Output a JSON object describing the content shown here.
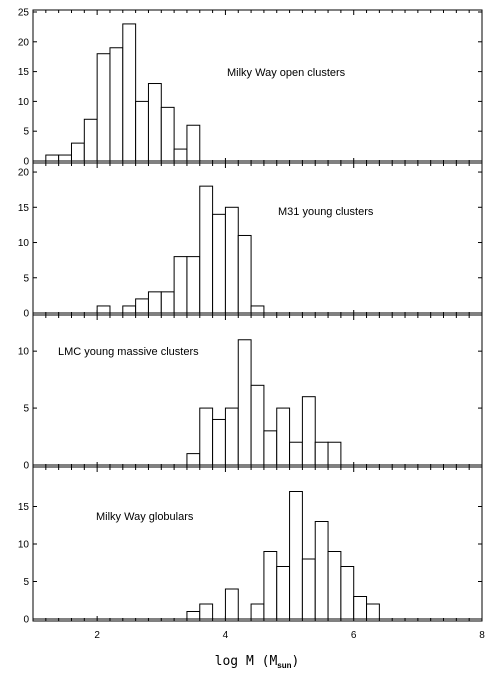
{
  "chart_data": [
    {
      "type": "bar",
      "label": "Milky Way open clusters",
      "bin_width": 0.2,
      "ylim": [
        0,
        25
      ],
      "yticks": [
        0,
        5,
        10,
        15,
        20,
        25
      ],
      "bins": [
        {
          "x": 1.2,
          "count": 1
        },
        {
          "x": 1.4,
          "count": 1
        },
        {
          "x": 1.6,
          "count": 3
        },
        {
          "x": 1.8,
          "count": 7
        },
        {
          "x": 2.0,
          "count": 18
        },
        {
          "x": 2.2,
          "count": 19
        },
        {
          "x": 2.4,
          "count": 23
        },
        {
          "x": 2.6,
          "count": 10
        },
        {
          "x": 2.8,
          "count": 13
        },
        {
          "x": 3.0,
          "count": 9
        },
        {
          "x": 3.2,
          "count": 2
        },
        {
          "x": 3.4,
          "count": 6
        }
      ]
    },
    {
      "type": "bar",
      "label": "M31 young clusters",
      "bin_width": 0.2,
      "ylim": [
        0,
        21
      ],
      "yticks": [
        0,
        5,
        10,
        15,
        20
      ],
      "bins": [
        {
          "x": 2.0,
          "count": 1
        },
        {
          "x": 2.4,
          "count": 1
        },
        {
          "x": 2.6,
          "count": 2
        },
        {
          "x": 2.8,
          "count": 3
        },
        {
          "x": 3.0,
          "count": 3
        },
        {
          "x": 3.2,
          "count": 8
        },
        {
          "x": 3.4,
          "count": 8
        },
        {
          "x": 3.6,
          "count": 18
        },
        {
          "x": 3.8,
          "count": 14
        },
        {
          "x": 4.0,
          "count": 15
        },
        {
          "x": 4.2,
          "count": 11
        },
        {
          "x": 4.4,
          "count": 1
        }
      ]
    },
    {
      "type": "bar",
      "label": "LMC young massive clusters",
      "bin_width": 0.2,
      "ylim": [
        0,
        13
      ],
      "yticks": [
        0,
        5,
        10
      ],
      "bins": [
        {
          "x": 3.4,
          "count": 1
        },
        {
          "x": 3.6,
          "count": 5
        },
        {
          "x": 3.8,
          "count": 4
        },
        {
          "x": 4.0,
          "count": 5
        },
        {
          "x": 4.2,
          "count": 11
        },
        {
          "x": 4.4,
          "count": 7
        },
        {
          "x": 4.6,
          "count": 3
        },
        {
          "x": 4.8,
          "count": 5
        },
        {
          "x": 5.0,
          "count": 2
        },
        {
          "x": 5.2,
          "count": 6
        },
        {
          "x": 5.4,
          "count": 2
        },
        {
          "x": 5.6,
          "count": 2
        }
      ]
    },
    {
      "type": "bar",
      "label": "Milky Way globulars",
      "bin_width": 0.2,
      "ylim": [
        0,
        20
      ],
      "yticks": [
        0,
        5,
        10,
        15
      ],
      "bins": [
        {
          "x": 3.4,
          "count": 1
        },
        {
          "x": 3.6,
          "count": 2
        },
        {
          "x": 4.0,
          "count": 4
        },
        {
          "x": 4.4,
          "count": 2
        },
        {
          "x": 4.6,
          "count": 9
        },
        {
          "x": 4.8,
          "count": 7
        },
        {
          "x": 5.0,
          "count": 17
        },
        {
          "x": 5.2,
          "count": 8
        },
        {
          "x": 5.4,
          "count": 13
        },
        {
          "x": 5.6,
          "count": 9
        },
        {
          "x": 5.8,
          "count": 7
        },
        {
          "x": 6.0,
          "count": 3
        },
        {
          "x": 6.2,
          "count": 2
        }
      ]
    }
  ],
  "x_axis": {
    "xlim": [
      1,
      8
    ],
    "ticks": [
      2,
      4,
      6,
      8
    ],
    "label_main": "log M (M",
    "label_sub": "sun",
    "label_close": ")"
  }
}
